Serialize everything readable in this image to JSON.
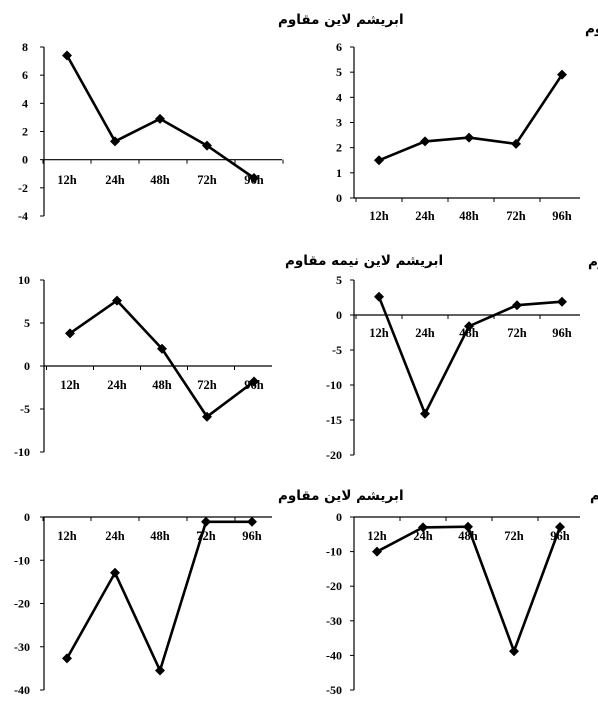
{
  "chart_data": [
    {
      "type": "line",
      "title": "ابریشم لاین مقاوم",
      "categories": [
        "12h",
        "24h",
        "48h",
        "72h",
        "96h"
      ],
      "ylim": [
        -4,
        8
      ],
      "yticks": [
        "8",
        "6",
        "4",
        "2",
        "0",
        "-2",
        "-4"
      ],
      "grid": false,
      "series": [
        {
          "values": [
            7.4,
            1.3,
            2.9,
            1.0,
            -1.3
          ]
        }
      ]
    },
    {
      "type": "line",
      "title": "دانه لاین مقاوم",
      "categories": [
        "12h",
        "24h",
        "48h",
        "72h",
        "96h"
      ],
      "ylim": [
        0,
        6
      ],
      "yticks": [
        "6",
        "5",
        "4",
        "3",
        "2",
        "1",
        "0"
      ],
      "grid": false,
      "series": [
        {
          "values": [
            1.5,
            2.25,
            2.4,
            2.15,
            4.9
          ]
        }
      ]
    },
    {
      "type": "line",
      "title": "ابریشم لاین نیمه مقاوم",
      "categories": [
        "12h",
        "24h",
        "48h",
        "72h",
        "96h"
      ],
      "ylim": [
        -10,
        10
      ],
      "yticks": [
        "10",
        "5",
        "0",
        "-5",
        "-10"
      ],
      "grid": false,
      "series": [
        {
          "values": [
            3.8,
            7.6,
            2.0,
            -5.9,
            -1.8
          ]
        }
      ]
    },
    {
      "type": "line",
      "title": "دانه لاین نیمه مقاوم",
      "categories": [
        "12h",
        "24h",
        "48h",
        "72h",
        "96h"
      ],
      "ylim": [
        -20,
        5
      ],
      "yticks": [
        "5",
        "0",
        "-5",
        "-10",
        "-15",
        "-20"
      ],
      "grid": false,
      "series": [
        {
          "values": [
            2.6,
            -14.1,
            -1.6,
            1.4,
            1.9
          ]
        }
      ]
    },
    {
      "type": "line",
      "title": "ابریشم لاین مقاوم",
      "categories": [
        "12h",
        "24h",
        "48h",
        "72h",
        "96h"
      ],
      "ylim": [
        -40,
        0
      ],
      "yticks": [
        "0",
        "-10",
        "-20",
        "-30",
        "-40"
      ],
      "grid": false,
      "series": [
        {
          "values": [
            -32.7,
            -12.9,
            -35.5,
            -1.1,
            -1.1
          ]
        }
      ]
    },
    {
      "type": "line",
      "title": "دانه لاین مقاوم",
      "categories": [
        "12h",
        "24h",
        "48h",
        "72h",
        "96h"
      ],
      "ylim": [
        -50,
        0
      ],
      "yticks": [
        "0",
        "-10",
        "-20",
        "-30",
        "-40",
        "-50"
      ],
      "grid": false,
      "series": [
        {
          "values": [
            -10.0,
            -3.0,
            -2.8,
            -38.8,
            -2.9
          ]
        }
      ]
    }
  ]
}
